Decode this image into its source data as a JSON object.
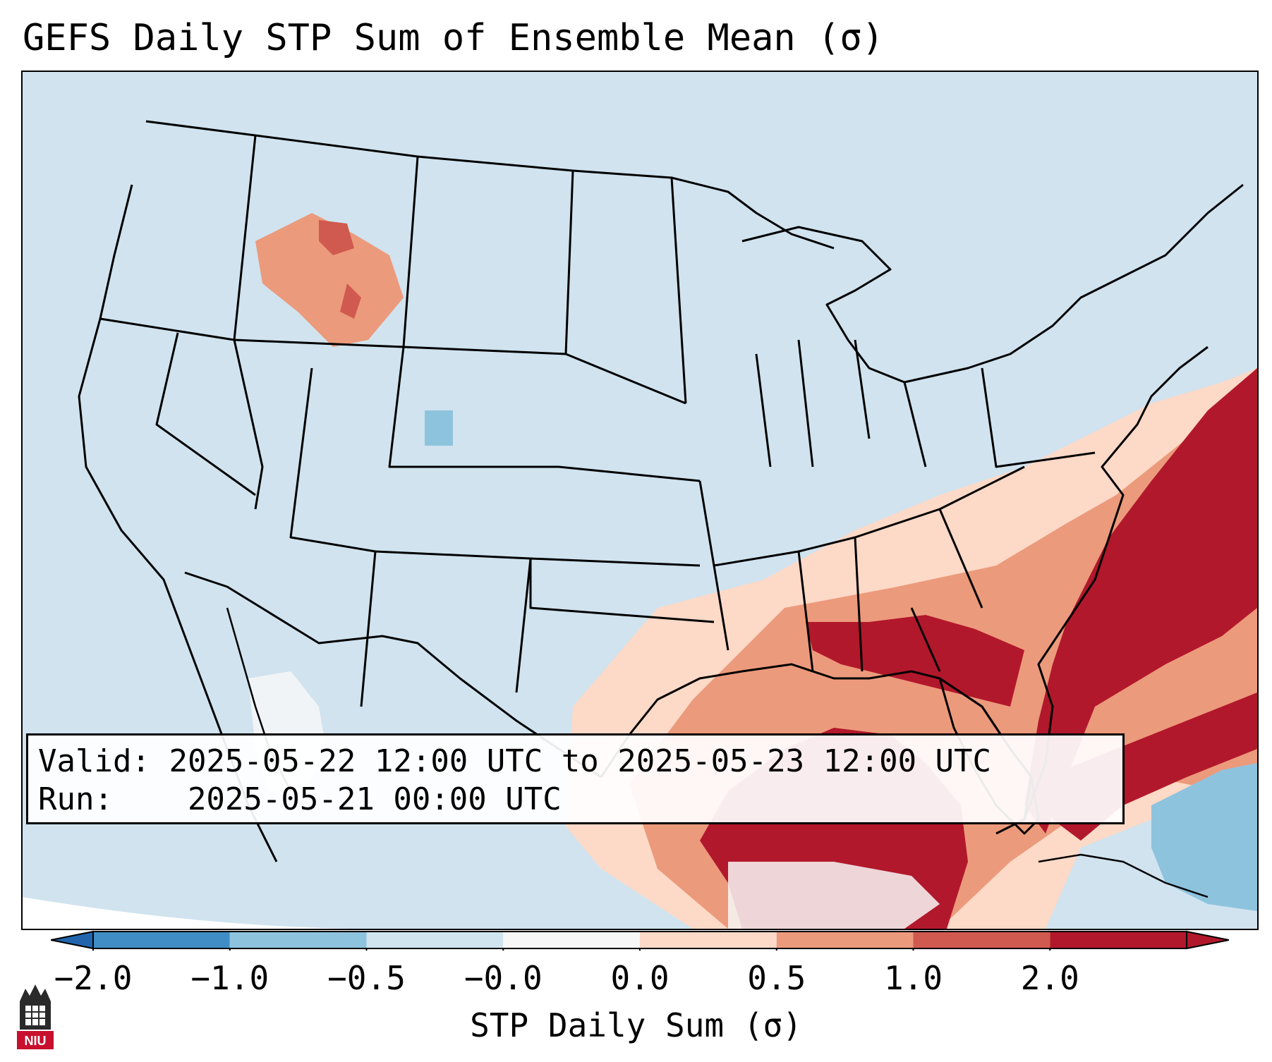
{
  "title": "GEFS Daily STP Sum of Ensemble Mean (σ)",
  "info": {
    "valid_label": "Valid:",
    "valid_value": "2025-05-22 12:00 UTC to 2025-05-23 12:00 UTC",
    "run_label": "Run:",
    "run_value": "2025-05-21 00:00 UTC"
  },
  "colorbar": {
    "label": "STP Daily Sum (σ)",
    "ticks": [
      "−2.0",
      "−1.0",
      "−0.5",
      "−0.0",
      "0.0",
      "0.5",
      "1.0",
      "2.0"
    ],
    "colors": [
      "#3f8dc4",
      "#8ec3de",
      "#cfe4ef",
      "#f7f7f7",
      "#fdd9c7",
      "#ec9a7c",
      "#d05a4f",
      "#b2182b"
    ],
    "extend": "both"
  },
  "map": {
    "projection": "Lambert conformal, CONUS",
    "background_color": "#d0e3ef",
    "boundaries": "states, countries, coastlines",
    "highlight_regions": [
      {
        "area": "Southeast US / Gulf Coast / Western Atlantic",
        "value_range": "1.0 to 2.0+"
      },
      {
        "area": "Tennessee / Ohio Valley / Mid-Atlantic",
        "value_range": "0.0 to 1.0"
      },
      {
        "area": "Idaho / Western Montana",
        "value_range": "0.0 to 2.0"
      },
      {
        "area": "Southwest US / Baja California",
        "value_range": "-0.0 to 0.0"
      },
      {
        "area": "Bahamas / Western Caribbean",
        "value_range": "-1.0 to -0.5"
      }
    ]
  },
  "logo": {
    "text": "NIU"
  }
}
